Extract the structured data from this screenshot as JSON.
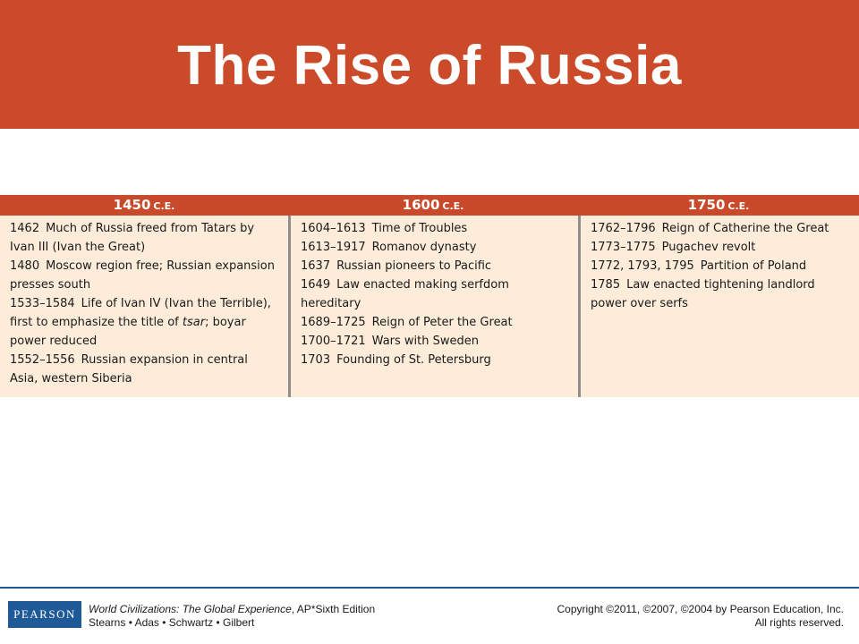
{
  "title": "The Rise of Russia",
  "eras": [
    {
      "year": "1450",
      "suffix": "C.E.",
      "events": [
        {
          "year": "1462",
          "text": "Much of Russia freed from Tatars by Ivan III (Ivan the Great)"
        },
        {
          "year": "1480",
          "text": "Moscow region free; Russian expansion presses south"
        },
        {
          "year": "1533–1584",
          "text": "Life of Ivan IV (Ivan the Terrible), first to emphasize the title of",
          "italic": "tsar",
          "text_after": "; boyar power reduced"
        },
        {
          "year": "1552–1556",
          "text": "Russian expansion in central Asia, western Siberia"
        }
      ]
    },
    {
      "year": "1600",
      "suffix": "C.E.",
      "events": [
        {
          "year": "1604–1613",
          "text": "Time of Troubles"
        },
        {
          "year": "1613–1917",
          "text": "Romanov dynasty"
        },
        {
          "year": "1637",
          "text": "Russian pioneers to Pacific"
        },
        {
          "year": "1649",
          "text": "Law enacted making serfdom hereditary"
        },
        {
          "year": "1689–1725",
          "text": "Reign of Peter the Great"
        },
        {
          "year": "1700–1721",
          "text": "Wars with Sweden"
        },
        {
          "year": "1703",
          "text": "Founding of St. Petersburg"
        }
      ]
    },
    {
      "year": "1750",
      "suffix": "C.E.",
      "events": [
        {
          "year": "1762–1796",
          "text": "Reign of Catherine the Great"
        },
        {
          "year": "1773–1775",
          "text": "Pugachev revolt"
        },
        {
          "year": "1772, 1793, 1795",
          "text": "Partition of Poland"
        },
        {
          "year": "1785",
          "text": "Law enacted tightening landlord power over serfs"
        }
      ]
    }
  ],
  "footer": {
    "logo": "PEARSON",
    "book_title": "World Civilizations: The Global Experience",
    "edition": ", AP*Sixth Edition",
    "authors": "Stearns • Adas • Schwartz • Gilbert",
    "copyright": "Copyright ©2011, ©2007, ©2004 by Pearson Education, Inc.",
    "rights": "All rights reserved."
  },
  "colors": {
    "title_bar": "#cb4a2a",
    "timeline_header": "#c94a2a",
    "timeline_body": "#fcecd9",
    "column_divider": "#8e8e8e",
    "footer_rule": "#1f5a98",
    "logo_background": "#1f5a98"
  }
}
